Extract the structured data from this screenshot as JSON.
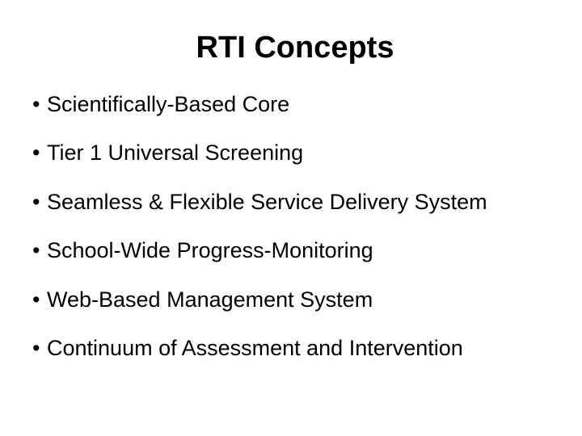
{
  "slide": {
    "title": "RTI Concepts",
    "bullets": [
      "Scientifically-Based Core",
      "Tier 1 Universal Screening",
      "Seamless & Flexible Service Delivery System",
      "School-Wide Progress-Monitoring",
      "Web-Based Management System",
      "Continuum of Assessment and Intervention"
    ],
    "styling": {
      "background_color": "#ffffff",
      "text_color": "#000000",
      "title_fontsize": 38,
      "title_fontweight": "bold",
      "bullet_fontsize": 27,
      "font_family": "Arial, Helvetica, sans-serif",
      "bullet_marker": "•"
    }
  }
}
